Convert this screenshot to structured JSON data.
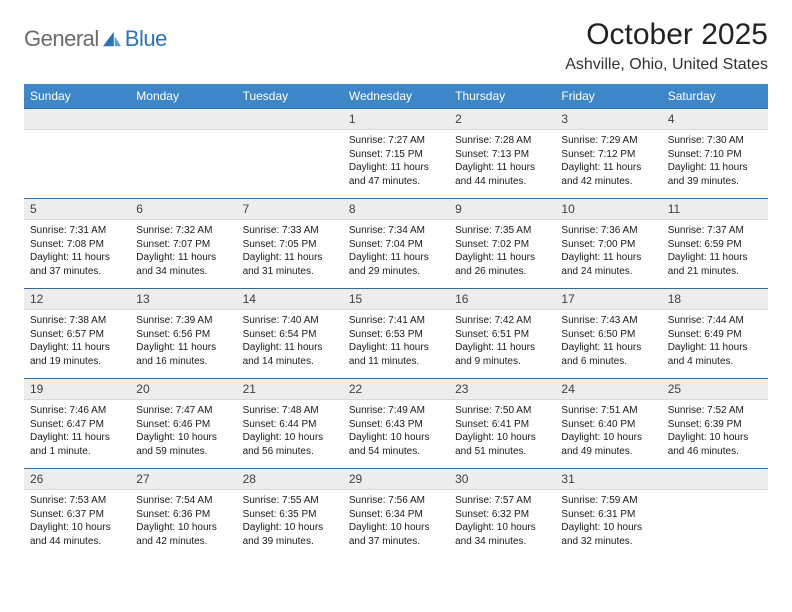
{
  "colors": {
    "header_bg": "#3d87c9",
    "header_text": "#ffffff",
    "daynum_bg": "#ededed",
    "daynum_border_top": "#2e6da4",
    "body_text": "#1a1a1a",
    "title_text": "#222222",
    "logo_gray": "#6b6b6b",
    "logo_blue": "#2b74b8"
  },
  "typography": {
    "title_fontsize": 30,
    "location_fontsize": 16,
    "header_fontsize": 12,
    "daynum_fontsize": 12,
    "info_fontsize": 10
  },
  "logo": {
    "text_a": "General",
    "text_b": "Blue"
  },
  "title": "October 2025",
  "location": "Ashville, Ohio, United States",
  "day_names": [
    "Sunday",
    "Monday",
    "Tuesday",
    "Wednesday",
    "Thursday",
    "Friday",
    "Saturday"
  ],
  "weeks": [
    [
      {
        "n": "",
        "sr": "",
        "ss": "",
        "dl": ""
      },
      {
        "n": "",
        "sr": "",
        "ss": "",
        "dl": ""
      },
      {
        "n": "",
        "sr": "",
        "ss": "",
        "dl": ""
      },
      {
        "n": "1",
        "sr": "Sunrise: 7:27 AM",
        "ss": "Sunset: 7:15 PM",
        "dl": "Daylight: 11 hours and 47 minutes."
      },
      {
        "n": "2",
        "sr": "Sunrise: 7:28 AM",
        "ss": "Sunset: 7:13 PM",
        "dl": "Daylight: 11 hours and 44 minutes."
      },
      {
        "n": "3",
        "sr": "Sunrise: 7:29 AM",
        "ss": "Sunset: 7:12 PM",
        "dl": "Daylight: 11 hours and 42 minutes."
      },
      {
        "n": "4",
        "sr": "Sunrise: 7:30 AM",
        "ss": "Sunset: 7:10 PM",
        "dl": "Daylight: 11 hours and 39 minutes."
      }
    ],
    [
      {
        "n": "5",
        "sr": "Sunrise: 7:31 AM",
        "ss": "Sunset: 7:08 PM",
        "dl": "Daylight: 11 hours and 37 minutes."
      },
      {
        "n": "6",
        "sr": "Sunrise: 7:32 AM",
        "ss": "Sunset: 7:07 PM",
        "dl": "Daylight: 11 hours and 34 minutes."
      },
      {
        "n": "7",
        "sr": "Sunrise: 7:33 AM",
        "ss": "Sunset: 7:05 PM",
        "dl": "Daylight: 11 hours and 31 minutes."
      },
      {
        "n": "8",
        "sr": "Sunrise: 7:34 AM",
        "ss": "Sunset: 7:04 PM",
        "dl": "Daylight: 11 hours and 29 minutes."
      },
      {
        "n": "9",
        "sr": "Sunrise: 7:35 AM",
        "ss": "Sunset: 7:02 PM",
        "dl": "Daylight: 11 hours and 26 minutes."
      },
      {
        "n": "10",
        "sr": "Sunrise: 7:36 AM",
        "ss": "Sunset: 7:00 PM",
        "dl": "Daylight: 11 hours and 24 minutes."
      },
      {
        "n": "11",
        "sr": "Sunrise: 7:37 AM",
        "ss": "Sunset: 6:59 PM",
        "dl": "Daylight: 11 hours and 21 minutes."
      }
    ],
    [
      {
        "n": "12",
        "sr": "Sunrise: 7:38 AM",
        "ss": "Sunset: 6:57 PM",
        "dl": "Daylight: 11 hours and 19 minutes."
      },
      {
        "n": "13",
        "sr": "Sunrise: 7:39 AM",
        "ss": "Sunset: 6:56 PM",
        "dl": "Daylight: 11 hours and 16 minutes."
      },
      {
        "n": "14",
        "sr": "Sunrise: 7:40 AM",
        "ss": "Sunset: 6:54 PM",
        "dl": "Daylight: 11 hours and 14 minutes."
      },
      {
        "n": "15",
        "sr": "Sunrise: 7:41 AM",
        "ss": "Sunset: 6:53 PM",
        "dl": "Daylight: 11 hours and 11 minutes."
      },
      {
        "n": "16",
        "sr": "Sunrise: 7:42 AM",
        "ss": "Sunset: 6:51 PM",
        "dl": "Daylight: 11 hours and 9 minutes."
      },
      {
        "n": "17",
        "sr": "Sunrise: 7:43 AM",
        "ss": "Sunset: 6:50 PM",
        "dl": "Daylight: 11 hours and 6 minutes."
      },
      {
        "n": "18",
        "sr": "Sunrise: 7:44 AM",
        "ss": "Sunset: 6:49 PM",
        "dl": "Daylight: 11 hours and 4 minutes."
      }
    ],
    [
      {
        "n": "19",
        "sr": "Sunrise: 7:46 AM",
        "ss": "Sunset: 6:47 PM",
        "dl": "Daylight: 11 hours and 1 minute."
      },
      {
        "n": "20",
        "sr": "Sunrise: 7:47 AM",
        "ss": "Sunset: 6:46 PM",
        "dl": "Daylight: 10 hours and 59 minutes."
      },
      {
        "n": "21",
        "sr": "Sunrise: 7:48 AM",
        "ss": "Sunset: 6:44 PM",
        "dl": "Daylight: 10 hours and 56 minutes."
      },
      {
        "n": "22",
        "sr": "Sunrise: 7:49 AM",
        "ss": "Sunset: 6:43 PM",
        "dl": "Daylight: 10 hours and 54 minutes."
      },
      {
        "n": "23",
        "sr": "Sunrise: 7:50 AM",
        "ss": "Sunset: 6:41 PM",
        "dl": "Daylight: 10 hours and 51 minutes."
      },
      {
        "n": "24",
        "sr": "Sunrise: 7:51 AM",
        "ss": "Sunset: 6:40 PM",
        "dl": "Daylight: 10 hours and 49 minutes."
      },
      {
        "n": "25",
        "sr": "Sunrise: 7:52 AM",
        "ss": "Sunset: 6:39 PM",
        "dl": "Daylight: 10 hours and 46 minutes."
      }
    ],
    [
      {
        "n": "26",
        "sr": "Sunrise: 7:53 AM",
        "ss": "Sunset: 6:37 PM",
        "dl": "Daylight: 10 hours and 44 minutes."
      },
      {
        "n": "27",
        "sr": "Sunrise: 7:54 AM",
        "ss": "Sunset: 6:36 PM",
        "dl": "Daylight: 10 hours and 42 minutes."
      },
      {
        "n": "28",
        "sr": "Sunrise: 7:55 AM",
        "ss": "Sunset: 6:35 PM",
        "dl": "Daylight: 10 hours and 39 minutes."
      },
      {
        "n": "29",
        "sr": "Sunrise: 7:56 AM",
        "ss": "Sunset: 6:34 PM",
        "dl": "Daylight: 10 hours and 37 minutes."
      },
      {
        "n": "30",
        "sr": "Sunrise: 7:57 AM",
        "ss": "Sunset: 6:32 PM",
        "dl": "Daylight: 10 hours and 34 minutes."
      },
      {
        "n": "31",
        "sr": "Sunrise: 7:59 AM",
        "ss": "Sunset: 6:31 PM",
        "dl": "Daylight: 10 hours and 32 minutes."
      },
      {
        "n": "",
        "sr": "",
        "ss": "",
        "dl": ""
      }
    ]
  ]
}
